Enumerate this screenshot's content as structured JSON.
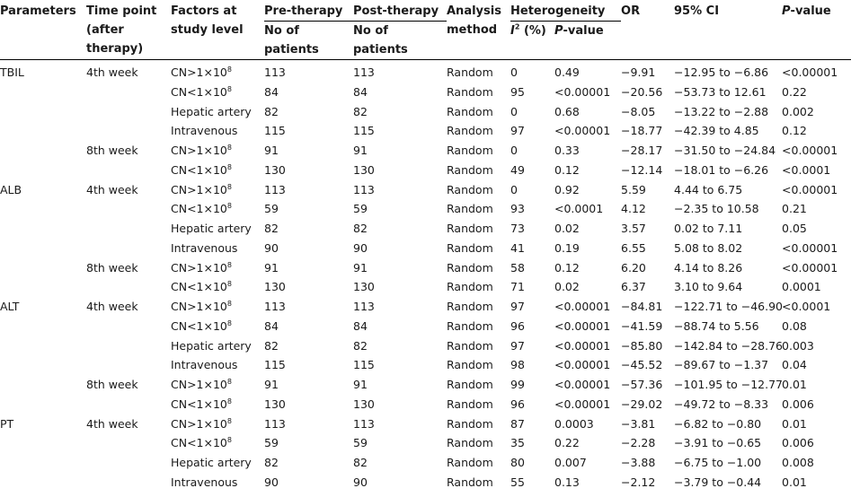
{
  "header": {
    "parameters": "Parameters",
    "time_point": [
      "Time point",
      "(after",
      "therapy)"
    ],
    "factors": [
      "Factors at",
      "study level"
    ],
    "pre": {
      "title": "Pre-therapy",
      "sub": [
        "No of",
        "patients"
      ]
    },
    "post": {
      "title": "Post-therapy",
      "sub": [
        "No of",
        "patients"
      ]
    },
    "analysis": [
      "Analysis",
      "method"
    ],
    "heterogeneity": {
      "title": "Heterogeneity",
      "i2": "I",
      "i2_sup": "2",
      "i2_rest": " (%)",
      "pval_italic": "P",
      "pval_rest": "-value"
    },
    "or": "OR",
    "ci": "95% CI",
    "pvalue_italic": "P",
    "pvalue_rest": "-value"
  },
  "rows": [
    {
      "param": "TBIL",
      "time": "4th week",
      "factor": "CN>1×10",
      "sup": "8",
      "pre": "113",
      "post": "113",
      "method": "Random",
      "i2": "0",
      "hp": "0.49",
      "or": "−9.91",
      "ci": "−12.95 to −6.86",
      "p": "<0.00001"
    },
    {
      "param": "",
      "time": "",
      "factor": "CN<1×10",
      "sup": "8",
      "pre": "84",
      "post": "84",
      "method": "Random",
      "i2": "95",
      "hp": "<0.00001",
      "or": "−20.56",
      "ci": "−53.73 to 12.61",
      "p": "0.22"
    },
    {
      "param": "",
      "time": "",
      "factor": "Hepatic artery",
      "sup": "",
      "pre": "82",
      "post": "82",
      "method": "Random",
      "i2": "0",
      "hp": "0.68",
      "or": "−8.05",
      "ci": "−13.22 to −2.88",
      "p": "0.002"
    },
    {
      "param": "",
      "time": "",
      "factor": "Intravenous",
      "sup": "",
      "pre": "115",
      "post": "115",
      "method": "Random",
      "i2": "97",
      "hp": "<0.00001",
      "or": "−18.77",
      "ci": "−42.39 to 4.85",
      "p": "0.12"
    },
    {
      "param": "",
      "time": "8th week",
      "factor": "CN>1×10",
      "sup": "8",
      "pre": "91",
      "post": "91",
      "method": "Random",
      "i2": "0",
      "hp": "0.33",
      "or": "−28.17",
      "ci": "−31.50 to −24.84",
      "p": "<0.00001"
    },
    {
      "param": "",
      "time": "",
      "factor": "CN<1×10",
      "sup": "8",
      "pre": "130",
      "post": "130",
      "method": "Random",
      "i2": "49",
      "hp": "0.12",
      "or": "−12.14",
      "ci": "−18.01 to −6.26",
      "p": "<0.0001"
    },
    {
      "param": "ALB",
      "time": "4th week",
      "factor": "CN>1×10",
      "sup": "8",
      "pre": "113",
      "post": "113",
      "method": "Random",
      "i2": "0",
      "hp": "0.92",
      "or": "5.59",
      "ci": "4.44 to 6.75",
      "p": "<0.00001"
    },
    {
      "param": "",
      "time": "",
      "factor": "CN<1×10",
      "sup": "8",
      "pre": "59",
      "post": "59",
      "method": "Random",
      "i2": "93",
      "hp": "<0.0001",
      "or": "4.12",
      "ci": "−2.35 to 10.58",
      "p": "0.21"
    },
    {
      "param": "",
      "time": "",
      "factor": "Hepatic artery",
      "sup": "",
      "pre": "82",
      "post": "82",
      "method": "Random",
      "i2": "73",
      "hp": "0.02",
      "or": "3.57",
      "ci": "0.02 to 7.11",
      "p": "0.05"
    },
    {
      "param": "",
      "time": "",
      "factor": "Intravenous",
      "sup": "",
      "pre": "90",
      "post": "90",
      "method": "Random",
      "i2": "41",
      "hp": "0.19",
      "or": "6.55",
      "ci": "5.08 to 8.02",
      "p": "<0.00001"
    },
    {
      "param": "",
      "time": "8th week",
      "factor": "CN>1×10",
      "sup": "8",
      "pre": "91",
      "post": "91",
      "method": "Random",
      "i2": "58",
      "hp": "0.12",
      "or": "6.20",
      "ci": "4.14 to 8.26",
      "p": "<0.00001"
    },
    {
      "param": "",
      "time": "",
      "factor": "CN<1×10",
      "sup": "8",
      "pre": "130",
      "post": "130",
      "method": "Random",
      "i2": "71",
      "hp": "0.02",
      "or": "6.37",
      "ci": "3.10 to 9.64",
      "p": "0.0001"
    },
    {
      "param": "ALT",
      "time": "4th week",
      "factor": "CN>1×10",
      "sup": "8",
      "pre": "113",
      "post": "113",
      "method": "Random",
      "i2": "97",
      "hp": "<0.00001",
      "or": "−84.81",
      "ci": "−122.71 to −46.90",
      "p": "<0.0001"
    },
    {
      "param": "",
      "time": "",
      "factor": "CN<1×10",
      "sup": "8",
      "pre": "84",
      "post": "84",
      "method": "Random",
      "i2": "96",
      "hp": "<0.00001",
      "or": "−41.59",
      "ci": "−88.74 to 5.56",
      "p": "0.08"
    },
    {
      "param": "",
      "time": "",
      "factor": "Hepatic artery",
      "sup": "",
      "pre": "82",
      "post": "82",
      "method": "Random",
      "i2": "97",
      "hp": "<0.00001",
      "or": "−85.80",
      "ci": "−142.84 to −28.76",
      "p": "0.003"
    },
    {
      "param": "",
      "time": "",
      "factor": "Intravenous",
      "sup": "",
      "pre": "115",
      "post": "115",
      "method": "Random",
      "i2": "98",
      "hp": "<0.00001",
      "or": "−45.52",
      "ci": "−89.67 to −1.37",
      "p": "0.04"
    },
    {
      "param": "",
      "time": "8th week",
      "factor": "CN>1×10",
      "sup": "8",
      "pre": "91",
      "post": "91",
      "method": "Random",
      "i2": "99",
      "hp": "<0.00001",
      "or": "−57.36",
      "ci": "−101.95 to −12.77",
      "p": "0.01"
    },
    {
      "param": "",
      "time": "",
      "factor": "CN<1×10",
      "sup": "8",
      "pre": "130",
      "post": "130",
      "method": "Random",
      "i2": "96",
      "hp": "<0.00001",
      "or": "−29.02",
      "ci": "−49.72 to −8.33",
      "p": "0.006"
    },
    {
      "param": "PT",
      "time": "4th week",
      "factor": "CN>1×10",
      "sup": "8",
      "pre": "113",
      "post": "113",
      "method": "Random",
      "i2": "87",
      "hp": "0.0003",
      "or": "−3.81",
      "ci": "−6.82 to −0.80",
      "p": "0.01"
    },
    {
      "param": "",
      "time": "",
      "factor": "CN<1×10",
      "sup": "8",
      "pre": "59",
      "post": "59",
      "method": "Random",
      "i2": "35",
      "hp": "0.22",
      "or": "−2.28",
      "ci": "−3.91 to −0.65",
      "p": "0.006"
    },
    {
      "param": "",
      "time": "",
      "factor": "Hepatic artery",
      "sup": "",
      "pre": "82",
      "post": "82",
      "method": "Random",
      "i2": "80",
      "hp": "0.007",
      "or": "−3.88",
      "ci": "−6.75 to −1.00",
      "p": "0.008"
    },
    {
      "param": "",
      "time": "",
      "factor": "Intravenous",
      "sup": "",
      "pre": "90",
      "post": "90",
      "method": "Random",
      "i2": "55",
      "hp": "0.13",
      "or": "−2.12",
      "ci": "−3.79 to −0.44",
      "p": "0.01"
    }
  ]
}
